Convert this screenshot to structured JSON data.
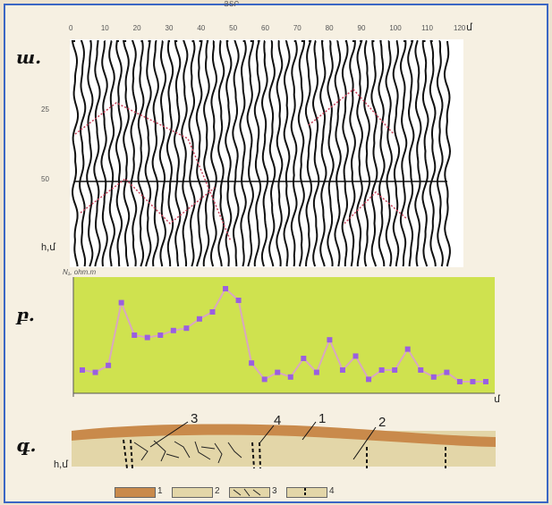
{
  "figure": {
    "top_caption": "ՅՏՐ",
    "panel_a": {
      "label": "ш.",
      "depth_label": "h,մ",
      "x_unit": "մ",
      "x_ticks": [
        "0",
        "10",
        "20",
        "30",
        "40",
        "50",
        "60",
        "70",
        "80",
        "90",
        "100",
        "110",
        "120"
      ],
      "y_ticks": [
        "25",
        "50"
      ]
    },
    "panel_b": {
      "label": "բ.",
      "y_label": "N₁, ohm.m",
      "x_unit": "մ"
    },
    "panel_c": {
      "label": "գ.",
      "depth_label": "h,մ",
      "callouts": [
        "3",
        "4",
        "1",
        "2"
      ]
    },
    "legend": {
      "items": [
        "1",
        "2",
        "3",
        "4"
      ]
    }
  },
  "colors": {
    "frame": "#3b66c4",
    "panel_b_bg": "#cfe24f",
    "line": "#d9a7c0",
    "marker": "#9a5fe0",
    "layer1": "#c98a4b",
    "layer2": "#e3d6a8"
  },
  "chart_data": {
    "type": "line",
    "title": "",
    "ylabel": "N₁, ohm.m",
    "xlabel": "մ",
    "x": [
      0,
      4,
      8,
      12,
      16,
      20,
      24,
      28,
      32,
      36,
      40,
      44,
      48,
      52,
      56,
      60,
      64,
      68,
      72,
      76,
      80,
      84,
      88,
      92,
      96,
      100,
      104,
      108,
      112,
      116,
      120,
      124
    ],
    "values": [
      25,
      24,
      27,
      54,
      40,
      39,
      40,
      42,
      43,
      47,
      50,
      60,
      55,
      28,
      21,
      24,
      22,
      30,
      24,
      38,
      25,
      31,
      21,
      25,
      25,
      34,
      25,
      22,
      24,
      20,
      20,
      20
    ],
    "ylim": [
      15,
      65
    ],
    "grid": false
  }
}
